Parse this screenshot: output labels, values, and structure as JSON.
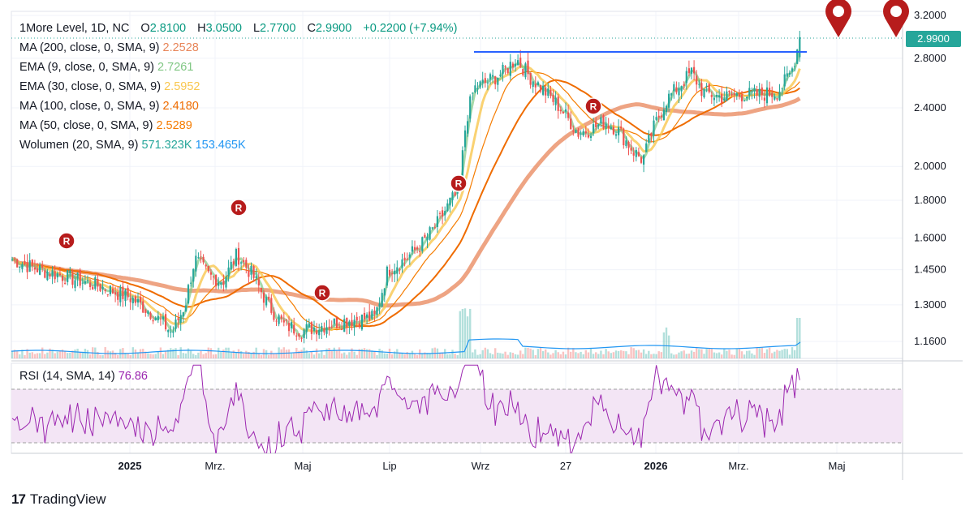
{
  "header": {
    "symbol": "1More Level, 1D, NC",
    "ohlc": [
      {
        "k": "O",
        "v": "2.8100"
      },
      {
        "k": "H",
        "v": "3.0500"
      },
      {
        "k": "L",
        "v": "2.7700"
      },
      {
        "k": "C",
        "v": "2.9900"
      }
    ],
    "change": "+0.2200 (+7.94%)"
  },
  "indicators": [
    {
      "label": "MA (200, close, 0, SMA, 9)",
      "value": "2.2528",
      "color": "#e8865a"
    },
    {
      "label": "EMA (9, close, 0, SMA, 9)",
      "value": "2.7261",
      "color": "#81c784"
    },
    {
      "label": "EMA (30, close, 0, SMA, 9)",
      "value": "2.5952",
      "color": "#f9c74f"
    },
    {
      "label": "MA (100, close, 0, SMA, 9)",
      "value": "2.4180",
      "color": "#ef6c00"
    },
    {
      "label": "MA (50, close, 0, SMA, 9)",
      "value": "2.5289",
      "color": "#f57c00"
    }
  ],
  "volume_legend": {
    "label": "Wolumen (20, SMA, 9)",
    "value1": "571.323K",
    "value2": "153.465K",
    "color1": "#26a69a",
    "color2": "#2196f3"
  },
  "rsi_legend": {
    "label": "RSI (14, SMA, 14)",
    "value": "76.86",
    "color": "#9c27b0"
  },
  "last_price": "2.9900",
  "brand": "TradingView",
  "colors": {
    "up": "#26a69a",
    "down": "#ef5350",
    "resistance": "#2962ff",
    "rsi": "#9c27b0",
    "marker": "#b71c1c"
  },
  "chart_data": {
    "type": "candlestick",
    "y_scale": "log",
    "y_ticks": [
      "3.2000",
      "2.8000",
      "2.4000",
      "2.0000",
      "1.8000",
      "1.6000",
      "1.4500",
      "1.3000",
      "1.1600"
    ],
    "x_ticks": [
      "2025",
      "Mrz.",
      "Maj",
      "Lip",
      "Wrz",
      "27",
      "2026",
      "Mrz.",
      "Maj"
    ],
    "resistance_level": 2.86,
    "markers_label": "R",
    "rsi_band": [
      30,
      70
    ]
  }
}
